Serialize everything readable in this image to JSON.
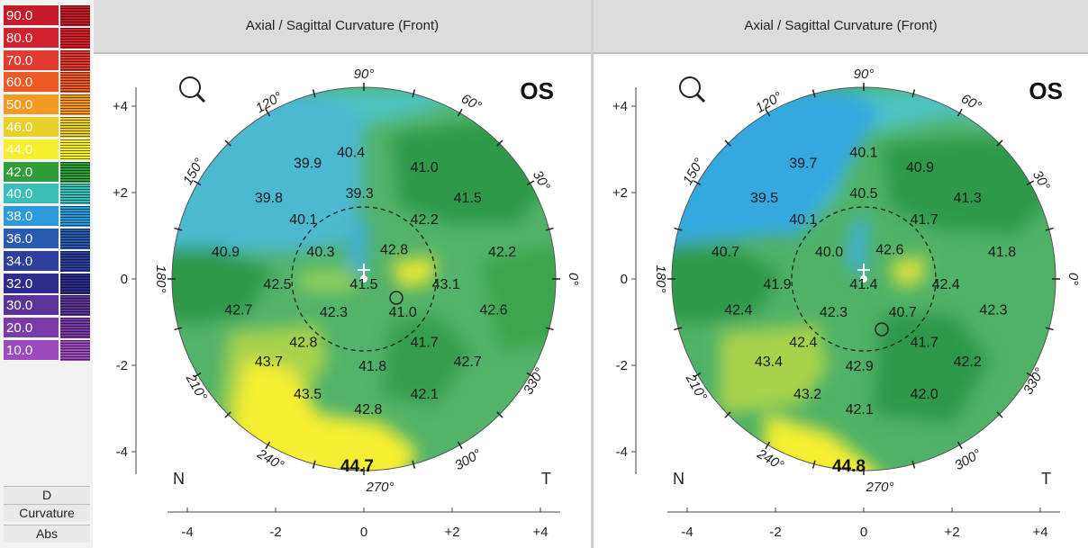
{
  "scale": {
    "entries": [
      {
        "label": "90.0",
        "color": "#c51a2a"
      },
      {
        "label": "80.0",
        "color": "#d4202c"
      },
      {
        "label": "70.0",
        "color": "#e23a2e"
      },
      {
        "label": "60.0",
        "color": "#ee5a24"
      },
      {
        "label": "50.0",
        "color": "#f49a22"
      },
      {
        "label": "46.0",
        "color": "#e8d02a"
      },
      {
        "label": "44.0",
        "color": "#f6f02a"
      },
      {
        "label": "42.0",
        "color": "#2f9e3a"
      },
      {
        "label": "40.0",
        "color": "#3bbfb8"
      },
      {
        "label": "38.0",
        "color": "#2b9bdc"
      },
      {
        "label": "36.0",
        "color": "#2a5aae"
      },
      {
        "label": "34.0",
        "color": "#2d3f9b"
      },
      {
        "label": "32.0",
        "color": "#2e2d8e"
      },
      {
        "label": "30.0",
        "color": "#5b3496"
      },
      {
        "label": "20.0",
        "color": "#7a3aa8"
      },
      {
        "label": "10.0",
        "color": "#9b4bbd"
      }
    ],
    "unit": "D",
    "type": "Curvature",
    "mode": "Abs"
  },
  "maps": [
    {
      "title": "Axial / Sagittal Curvature (Front)",
      "eye": "OS",
      "zone": "9mm",
      "nasal": "N",
      "temporal": "T",
      "y_ticks": [
        "+4",
        "+2",
        "0",
        "-2",
        "-4"
      ],
      "x_ticks": [
        "-4",
        "-2",
        "0",
        "+2",
        "+4"
      ],
      "angles": {
        "a90": "90°",
        "a120": "120°",
        "a60": "60°",
        "a150": "150°",
        "a30": "30°",
        "a180": "180°",
        "a0": "0°",
        "a210": "210°",
        "a330": "330°",
        "a240": "240°",
        "a300": "300°",
        "a270": "270°"
      },
      "center_value": "44.7",
      "values": [
        {
          "v": "40.4",
          "x": -0.3,
          "y": 2.95
        },
        {
          "v": "39.9",
          "x": -1.3,
          "y": 2.7
        },
        {
          "v": "41.0",
          "x": 1.4,
          "y": 2.6
        },
        {
          "v": "39.8",
          "x": -2.2,
          "y": 1.9
        },
        {
          "v": "39.3",
          "x": -0.1,
          "y": 2.0
        },
        {
          "v": "41.5",
          "x": 2.4,
          "y": 1.9
        },
        {
          "v": "40.1",
          "x": -1.4,
          "y": 1.4
        },
        {
          "v": "42.2",
          "x": 1.4,
          "y": 1.4
        },
        {
          "v": "40.9",
          "x": -3.2,
          "y": 0.65
        },
        {
          "v": "40.3",
          "x": -1.0,
          "y": 0.65
        },
        {
          "v": "42.8",
          "x": 0.7,
          "y": 0.7
        },
        {
          "v": "42.2",
          "x": 3.2,
          "y": 0.65
        },
        {
          "v": "42.5",
          "x": -2.0,
          "y": -0.1
        },
        {
          "v": "41.5",
          "x": 0.0,
          "y": -0.1
        },
        {
          "v": "43.1",
          "x": 1.9,
          "y": -0.1
        },
        {
          "v": "42.7",
          "x": -2.9,
          "y": -0.7
        },
        {
          "v": "42.3",
          "x": -0.7,
          "y": -0.75
        },
        {
          "v": "41.0",
          "x": 0.9,
          "y": -0.75
        },
        {
          "v": "42.6",
          "x": 3.0,
          "y": -0.7
        },
        {
          "v": "42.8",
          "x": -1.4,
          "y": -1.45
        },
        {
          "v": "41.7",
          "x": 1.4,
          "y": -1.45
        },
        {
          "v": "43.7",
          "x": -2.2,
          "y": -1.9
        },
        {
          "v": "41.8",
          "x": 0.2,
          "y": -2.0
        },
        {
          "v": "42.7",
          "x": 2.4,
          "y": -1.9
        },
        {
          "v": "43.5",
          "x": -1.3,
          "y": -2.65
        },
        {
          "v": "42.1",
          "x": 1.4,
          "y": -2.65
        },
        {
          "v": "42.8",
          "x": 0.1,
          "y": -3.0
        }
      ]
    },
    {
      "title": "Axial / Sagittal Curvature (Front)",
      "eye": "OS",
      "zone": "9mm",
      "nasal": "N",
      "temporal": "T",
      "y_ticks": [
        "+4",
        "+2",
        "0",
        "-2",
        "-4"
      ],
      "x_ticks": [
        "-4",
        "-2",
        "0",
        "+2",
        "+4"
      ],
      "angles": {
        "a90": "90°",
        "a120": "120°",
        "a60": "60°",
        "a150": "150°",
        "a30": "30°",
        "a180": "180°",
        "a0": "0°",
        "a210": "210°",
        "a330": "330°",
        "a240": "240°",
        "a300": "300°",
        "a270": "270°"
      },
      "center_value": "44.8",
      "values": [
        {
          "v": "40.1",
          "x": 0.0,
          "y": 2.95
        },
        {
          "v": "39.7",
          "x": -1.4,
          "y": 2.7
        },
        {
          "v": "40.9",
          "x": 1.3,
          "y": 2.6
        },
        {
          "v": "39.5",
          "x": -2.3,
          "y": 1.9
        },
        {
          "v": "40.5",
          "x": 0.0,
          "y": 2.0
        },
        {
          "v": "41.3",
          "x": 2.4,
          "y": 1.9
        },
        {
          "v": "40.1",
          "x": -1.4,
          "y": 1.4
        },
        {
          "v": "41.7",
          "x": 1.4,
          "y": 1.4
        },
        {
          "v": "40.7",
          "x": -3.2,
          "y": 0.65
        },
        {
          "v": "40.0",
          "x": -0.8,
          "y": 0.65
        },
        {
          "v": "42.6",
          "x": 0.6,
          "y": 0.7
        },
        {
          "v": "41.8",
          "x": 3.2,
          "y": 0.65
        },
        {
          "v": "41.9",
          "x": -2.0,
          "y": -0.1
        },
        {
          "v": "41.4",
          "x": 0.0,
          "y": -0.1
        },
        {
          "v": "42.4",
          "x": 1.9,
          "y": -0.1
        },
        {
          "v": "42.4",
          "x": -2.9,
          "y": -0.7
        },
        {
          "v": "42.3",
          "x": -0.7,
          "y": -0.75
        },
        {
          "v": "40.7",
          "x": 0.9,
          "y": -0.75
        },
        {
          "v": "42.3",
          "x": 3.0,
          "y": -0.7
        },
        {
          "v": "42.4",
          "x": -1.4,
          "y": -1.45
        },
        {
          "v": "41.7",
          "x": 1.4,
          "y": -1.45
        },
        {
          "v": "43.4",
          "x": -2.2,
          "y": -1.9
        },
        {
          "v": "42.9",
          "x": -0.1,
          "y": -2.0
        },
        {
          "v": "42.2",
          "x": 2.4,
          "y": -1.9
        },
        {
          "v": "43.2",
          "x": -1.3,
          "y": -2.65
        },
        {
          "v": "42.0",
          "x": 1.4,
          "y": -2.65
        },
        {
          "v": "42.1",
          "x": -0.1,
          "y": -3.0
        }
      ]
    }
  ]
}
